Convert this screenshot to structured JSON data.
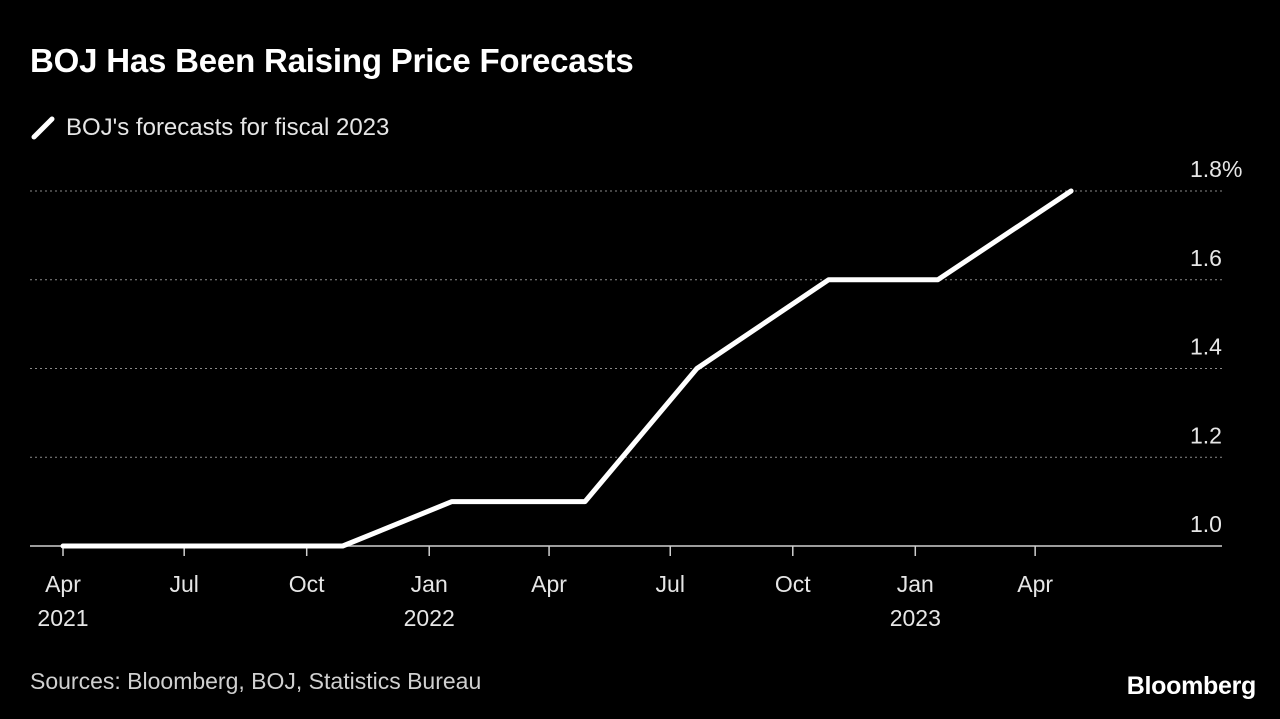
{
  "title": "BOJ Has Been Raising Price Forecasts",
  "source": "Sources: Bloomberg, BOJ, Statistics Bureau",
  "brand": "Bloomberg",
  "chart_data": {
    "type": "line",
    "title": "BOJ Has Been Raising Price Forecasts",
    "legend": "top-left",
    "grid": true,
    "ylim": [
      1.0,
      1.8
    ],
    "y_ticks": [
      1.0,
      1.2,
      1.4,
      1.6,
      1.8
    ],
    "y_tick_labels": [
      "1.0",
      "1.2",
      "1.4",
      "1.6",
      "1.8%"
    ],
    "x_range": [
      "2021-04-01",
      "2023-06-30"
    ],
    "x_ticks": [
      {
        "date": "2021-04-01",
        "label": "Apr",
        "year": "2021"
      },
      {
        "date": "2021-07-01",
        "label": "Jul",
        "year": ""
      },
      {
        "date": "2021-10-01",
        "label": "Oct",
        "year": ""
      },
      {
        "date": "2022-01-01",
        "label": "Jan",
        "year": "2022"
      },
      {
        "date": "2022-04-01",
        "label": "Apr",
        "year": ""
      },
      {
        "date": "2022-07-01",
        "label": "Jul",
        "year": ""
      },
      {
        "date": "2022-10-01",
        "label": "Oct",
        "year": ""
      },
      {
        "date": "2023-01-01",
        "label": "Jan",
        "year": "2023"
      },
      {
        "date": "2023-04-01",
        "label": "Apr",
        "year": ""
      }
    ],
    "series": [
      {
        "name": "BOJ's forecasts for fiscal 2023",
        "color": "#ffffff",
        "points": [
          {
            "x": "2021-04-01",
            "y": 1.0
          },
          {
            "x": "2021-07-01",
            "y": 1.0
          },
          {
            "x": "2021-10-01",
            "y": 1.0
          },
          {
            "x": "2021-10-28",
            "y": 1.0
          },
          {
            "x": "2022-01-18",
            "y": 1.1
          },
          {
            "x": "2022-04-28",
            "y": 1.1
          },
          {
            "x": "2022-07-21",
            "y": 1.4
          },
          {
            "x": "2022-10-28",
            "y": 1.6
          },
          {
            "x": "2023-01-18",
            "y": 1.6
          },
          {
            "x": "2023-04-28",
            "y": 1.8
          }
        ]
      }
    ]
  }
}
